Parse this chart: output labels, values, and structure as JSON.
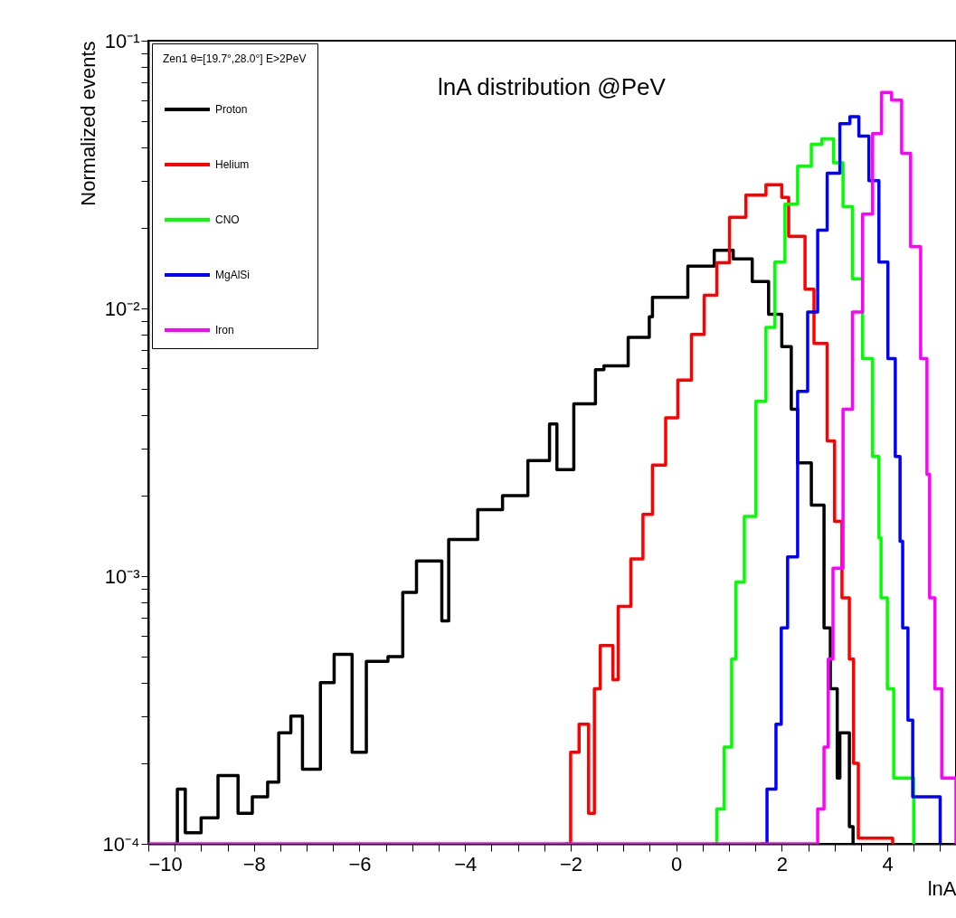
{
  "chart_data": {
    "type": "step",
    "title": "lnA distribution @PeV",
    "xlabel": "lnA",
    "ylabel": "Normalized events",
    "legend_title": "Zen1 θ=[19.7°,28.0°] E>2PeV",
    "legend": "top left",
    "log": true,
    "grid": false,
    "xlim": [
      -10,
      5.3
    ],
    "ylim": [
      0.0001,
      0.1
    ],
    "xticks": [
      -10,
      {
        "value": -9.5,
        "label": null
      },
      {
        "value": -9,
        "label": null
      },
      {
        "value": -8.5,
        "label": null
      },
      -8,
      {
        "value": -7.5,
        "label": null
      },
      {
        "value": -7,
        "label": null
      },
      {
        "value": -6.5,
        "label": null
      },
      -6,
      {
        "value": -5.5,
        "label": null
      },
      {
        "value": -5,
        "label": null
      },
      {
        "value": -4.5,
        "label": null
      },
      -4,
      {
        "value": -3.5,
        "label": null
      },
      {
        "value": -3,
        "label": null
      },
      {
        "value": -2.5,
        "label": null
      },
      -2,
      {
        "value": -1.5,
        "label": null
      },
      {
        "value": -1,
        "label": null
      },
      {
        "value": -0.5,
        "label": null
      },
      0,
      {
        "value": 0.5,
        "label": null
      },
      {
        "value": 1,
        "label": null
      },
      {
        "value": 1.5,
        "label": null
      },
      2,
      {
        "value": 2.5,
        "label": null
      },
      {
        "value": 3,
        "label": null
      },
      {
        "value": 3.5,
        "label": null
      },
      4,
      {
        "value": 4.5,
        "label": null
      },
      {
        "value": 5,
        "label": null
      }
    ],
    "yticks": [
      {
        "value": 0.0001,
        "label": "10⁻⁴"
      },
      {
        "value": 0.0002,
        "label": null
      },
      {
        "value": 0.0003,
        "label": null
      },
      {
        "value": 0.0004,
        "label": null
      },
      {
        "value": 0.0005,
        "label": null
      },
      {
        "value": 0.0006,
        "label": null
      },
      {
        "value": 0.0007,
        "label": null
      },
      {
        "value": 0.0008,
        "label": null
      },
      {
        "value": 0.0009,
        "label": null
      },
      {
        "value": 0.001,
        "label": "10⁻³"
      },
      {
        "value": 0.002,
        "label": null
      },
      {
        "value": 0.003,
        "label": null
      },
      {
        "value": 0.004,
        "label": null
      },
      {
        "value": 0.005,
        "label": null
      },
      {
        "value": 0.006,
        "label": null
      },
      {
        "value": 0.007,
        "label": null
      },
      {
        "value": 0.008,
        "label": null
      },
      {
        "value": 0.009,
        "label": null
      },
      {
        "value": 0.01,
        "label": "10⁻²"
      },
      {
        "value": 0.02,
        "label": null
      },
      {
        "value": 0.03,
        "label": null
      },
      {
        "value": 0.04,
        "label": null
      },
      {
        "value": 0.05,
        "label": null
      },
      {
        "value": 0.06,
        "label": null
      },
      {
        "value": 0.07,
        "label": null
      },
      {
        "value": 0.08,
        "label": null
      },
      {
        "value": 0.09,
        "label": null
      },
      {
        "value": 0.1,
        "label": "10⁻¹"
      }
    ],
    "series": [
      {
        "name": "Proton",
        "color": "#000000",
        "x": [
          -9.5,
          -9.45,
          -9.3,
          -9.0,
          -8.68,
          -8.3,
          -8.03,
          -7.74,
          -7.53,
          -7.3,
          -7.08,
          -6.74,
          -6.48,
          -6.14,
          -5.87,
          -5.46,
          -5.18,
          -4.92,
          -4.44,
          -4.31,
          -3.76,
          -3.29,
          -2.81,
          -2.4,
          -2.26,
          -1.94,
          -1.53,
          -1.37,
          -0.91,
          -0.51,
          -0.45,
          0.22,
          0.72,
          1.08,
          1.44,
          1.75,
          2.0,
          2.18,
          2.3,
          2.56,
          2.8,
          2.92,
          3.05,
          3.1,
          3.28,
          3.35
        ],
        "values": [
          0.0001,
          0.00016,
          0.00011,
          0.000125,
          0.00018,
          0.00013,
          0.00015,
          0.00017,
          0.00026,
          0.0003,
          0.00019,
          0.0004,
          0.00051,
          0.00022,
          0.00048,
          0.0005,
          0.00087,
          0.00114,
          0.00068,
          0.00137,
          0.00177,
          0.002,
          0.0027,
          0.0037,
          0.0025,
          0.0044,
          0.0059,
          0.0061,
          0.0078,
          0.0093,
          0.011,
          0.0144,
          0.0165,
          0.0153,
          0.0126,
          0.0095,
          0.0072,
          0.0042,
          0.00265,
          0.00184,
          0.00064,
          0.00038,
          0.000176,
          0.00026,
          0.000116,
          0.0001
        ]
      },
      {
        "name": "Helium",
        "color": "#ff0000",
        "x": [
          -2.1,
          -2.0,
          -1.84,
          -1.66,
          -1.55,
          -1.44,
          -1.2,
          -1.1,
          -0.86,
          -0.63,
          -0.45,
          -0.2,
          0.03,
          0.29,
          0.53,
          0.77,
          1.01,
          1.32,
          1.7,
          2.0,
          2.13,
          2.44,
          2.61,
          2.86,
          3.0,
          3.14,
          3.28,
          3.36,
          3.45,
          4.1
        ],
        "values": [
          0.0001,
          0.00022,
          0.00028,
          0.00013,
          0.00038,
          0.00055,
          0.00041,
          0.00077,
          0.00116,
          0.0017,
          0.0026,
          0.0039,
          0.0054,
          0.008,
          0.0112,
          0.0148,
          0.0219,
          0.0265,
          0.029,
          0.026,
          0.0186,
          0.0118,
          0.0074,
          0.0032,
          0.0016,
          0.00083,
          0.00049,
          0.0002,
          0.000105,
          0.0001
        ]
      },
      {
        "name": "CNO",
        "color": "#00ff00",
        "x": [
          0.69,
          0.77,
          0.91,
          1.05,
          1.13,
          1.29,
          1.51,
          1.7,
          1.87,
          2.06,
          2.3,
          2.56,
          2.76,
          2.98,
          3.16,
          3.34,
          3.53,
          3.72,
          3.84,
          3.88,
          4.0,
          4.12,
          4.5
        ],
        "values": [
          0.0001,
          0.000135,
          0.00023,
          0.00049,
          0.00095,
          0.00167,
          0.0045,
          0.0085,
          0.0149,
          0.0245,
          0.034,
          0.041,
          0.043,
          0.035,
          0.024,
          0.0129,
          0.0065,
          0.0028,
          0.00139,
          0.00083,
          0.00038,
          0.000176,
          0.0001
        ]
      },
      {
        "name": "MgAlSi",
        "color": "#0000ff",
        "x": [
          1.6,
          1.72,
          1.89,
          1.99,
          2.11,
          2.3,
          2.49,
          2.68,
          2.86,
          3.1,
          3.29,
          3.46,
          3.65,
          3.84,
          4.01,
          4.15,
          4.24,
          4.29,
          4.39,
          4.48,
          5.0
        ],
        "values": [
          0.0001,
          0.00016,
          0.00028,
          0.00064,
          0.00118,
          0.0049,
          0.0097,
          0.0196,
          0.032,
          0.049,
          0.052,
          0.044,
          0.03,
          0.0149,
          0.0065,
          0.0028,
          0.00135,
          0.00064,
          0.00029,
          0.00015,
          0.0001
        ]
      },
      {
        "name": "Iron",
        "color": "#ff00ff",
        "x": [
          -10,
          2.66,
          2.68,
          2.8,
          2.88,
          2.97,
          3.16,
          3.34,
          3.53,
          3.72,
          3.89,
          4.08,
          4.27,
          4.44,
          4.63,
          4.75,
          4.8,
          4.9,
          5.03,
          5.3
        ],
        "values": [
          0.0001,
          0.0001,
          0.000135,
          0.00023,
          0.00049,
          0.00107,
          0.0042,
          0.0097,
          0.0225,
          0.045,
          0.064,
          0.06,
          0.038,
          0.017,
          0.0065,
          0.0024,
          0.00083,
          0.00038,
          0.000176,
          0.0001
        ]
      }
    ]
  }
}
